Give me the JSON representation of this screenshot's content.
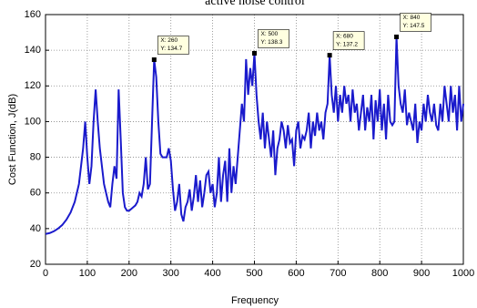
{
  "chart_data": {
    "type": "line",
    "title": "active noise control",
    "xlabel": "Frequency",
    "ylabel": "Cost Function, J(dB)",
    "xlim": [
      0,
      1000
    ],
    "xticks": [
      0,
      100,
      200,
      300,
      400,
      500,
      600,
      700,
      800,
      900,
      1000
    ],
    "ylim": [
      20,
      160
    ],
    "yticks": [
      20,
      40,
      60,
      80,
      100,
      120,
      140,
      160
    ],
    "grid": true,
    "x": [
      0,
      10,
      20,
      30,
      40,
      50,
      60,
      70,
      80,
      90,
      95,
      100,
      105,
      110,
      115,
      120,
      125,
      130,
      135,
      140,
      145,
      150,
      155,
      160,
      165,
      170,
      175,
      180,
      185,
      190,
      195,
      200,
      205,
      210,
      215,
      220,
      225,
      230,
      235,
      240,
      245,
      250,
      255,
      260,
      265,
      270,
      275,
      280,
      285,
      290,
      295,
      300,
      305,
      310,
      315,
      320,
      325,
      330,
      335,
      340,
      345,
      350,
      355,
      360,
      365,
      370,
      375,
      380,
      385,
      390,
      395,
      400,
      405,
      410,
      415,
      420,
      425,
      430,
      435,
      440,
      445,
      450,
      455,
      460,
      465,
      470,
      475,
      480,
      485,
      490,
      495,
      500,
      505,
      510,
      515,
      520,
      525,
      530,
      535,
      540,
      545,
      550,
      555,
      560,
      565,
      570,
      575,
      580,
      585,
      590,
      595,
      600,
      605,
      610,
      615,
      620,
      625,
      630,
      635,
      640,
      645,
      650,
      655,
      660,
      665,
      670,
      675,
      680,
      685,
      690,
      695,
      700,
      705,
      710,
      715,
      720,
      725,
      730,
      735,
      740,
      745,
      750,
      755,
      760,
      765,
      770,
      775,
      780,
      785,
      790,
      795,
      800,
      805,
      810,
      815,
      820,
      825,
      830,
      835,
      840,
      845,
      850,
      855,
      860,
      865,
      870,
      875,
      880,
      885,
      890,
      895,
      900,
      905,
      910,
      915,
      920,
      925,
      930,
      935,
      940,
      945,
      950,
      955,
      960,
      965,
      970,
      975,
      980,
      985,
      990,
      995,
      1000
    ],
    "series": [
      {
        "color": "#1a1acc",
        "values": [
          37,
          37.5,
          38.5,
          40,
          42,
          45,
          49,
          55,
          65,
          85,
          100,
          80,
          65,
          75,
          100,
          118,
          100,
          85,
          75,
          65,
          60,
          55,
          52,
          65,
          75,
          68,
          118,
          90,
          60,
          52,
          50,
          50,
          51,
          52,
          53,
          55,
          60,
          58,
          65,
          80,
          62,
          65,
          100,
          134.7,
          125,
          100,
          82,
          80,
          80,
          80,
          85,
          78,
          62,
          50,
          55,
          65,
          48,
          44,
          52,
          55,
          62,
          50,
          58,
          70,
          55,
          67,
          52,
          60,
          70,
          72,
          60,
          65,
          52,
          60,
          80,
          55,
          70,
          78,
          55,
          85,
          60,
          75,
          65,
          80,
          95,
          110,
          100,
          135,
          115,
          130,
          120,
          138.3,
          115,
          100,
          90,
          105,
          85,
          100,
          90,
          80,
          95,
          70,
          85,
          90,
          100,
          95,
          85,
          98,
          88,
          90,
          75,
          95,
          100,
          85,
          92,
          90,
          95,
          105,
          85,
          100,
          92,
          105,
          95,
          100,
          90,
          105,
          110,
          137.2,
          115,
          105,
          120,
          100,
          115,
          105,
          120,
          110,
          115,
          100,
          118,
          105,
          110,
          95,
          105,
          115,
          95,
          108,
          100,
          115,
          90,
          112,
          100,
          118,
          95,
          110,
          90,
          115,
          100,
          98,
          100,
          147.5,
          120,
          110,
          105,
          118,
          98,
          105,
          100,
          95,
          110,
          88,
          100,
          95,
          110,
          100,
          115,
          105,
          100,
          110,
          98,
          95,
          110,
          100,
          120,
          110,
          100,
          120,
          105,
          115,
          95,
          120,
          100,
          110
        ]
      }
    ],
    "datatips": [
      {
        "x": 260,
        "y": 134.7,
        "labels": [
          "X: 260",
          "Y: 134.7"
        ]
      },
      {
        "x": 500,
        "y": 138.3,
        "labels": [
          "X: 500",
          "Y: 138.3"
        ]
      },
      {
        "x": 680,
        "y": 137.2,
        "labels": [
          "X: 680",
          "Y: 137.2"
        ]
      },
      {
        "x": 840,
        "y": 147.5,
        "labels": [
          "X: 840",
          "Y: 147.5"
        ]
      }
    ]
  }
}
